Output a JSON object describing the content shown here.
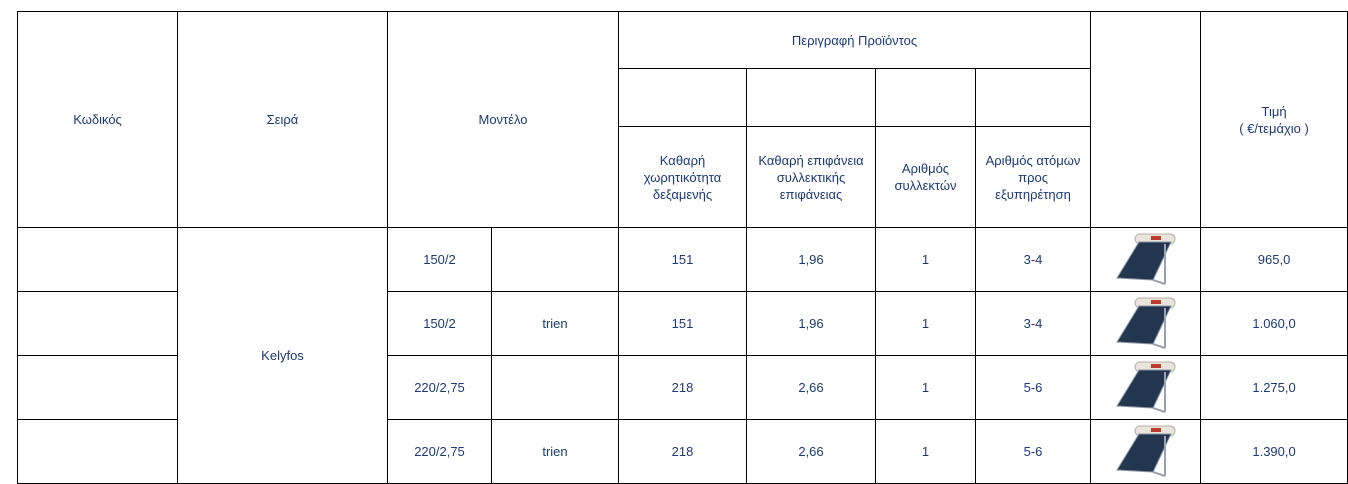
{
  "header": {
    "code": "Κωδικός",
    "series": "Σειρά",
    "model": "Μοντέλο",
    "description": "Περιγραφή Προϊόντος",
    "capacity": "Καθαρή χωρητικότητα δεξαμενής",
    "area": "Καθαρή επιφάνεια συλλεκτικής επιφάνειας",
    "collectors": "Αριθμός συλλεκτών",
    "persons": "Αριθμός ατόμων προς εξυπηρέτηση",
    "price": [
      "Τιμή",
      "( €/τεμάχιο )"
    ]
  },
  "series_name": "Kelyfos",
  "rows": [
    {
      "model": "150/2",
      "capacity": "151",
      "area": "1,96",
      "collectors": "1",
      "persons": "3-4",
      "price": "965,0"
    },
    {
      "model": "150/2",
      "variant": "trien",
      "capacity": "151",
      "area": "1,96",
      "collectors": "1",
      "persons": "3-4",
      "price": "1.060,0"
    },
    {
      "model": "220/2,75",
      "capacity": "218",
      "area": "2,66",
      "collectors": "1",
      "persons": "5-6",
      "price": "1.275,0"
    },
    {
      "model": "220/2,75",
      "variant": "trien",
      "capacity": "218",
      "area": "2,66",
      "collectors": "1",
      "persons": "5-6",
      "price": "1.390,0"
    }
  ]
}
